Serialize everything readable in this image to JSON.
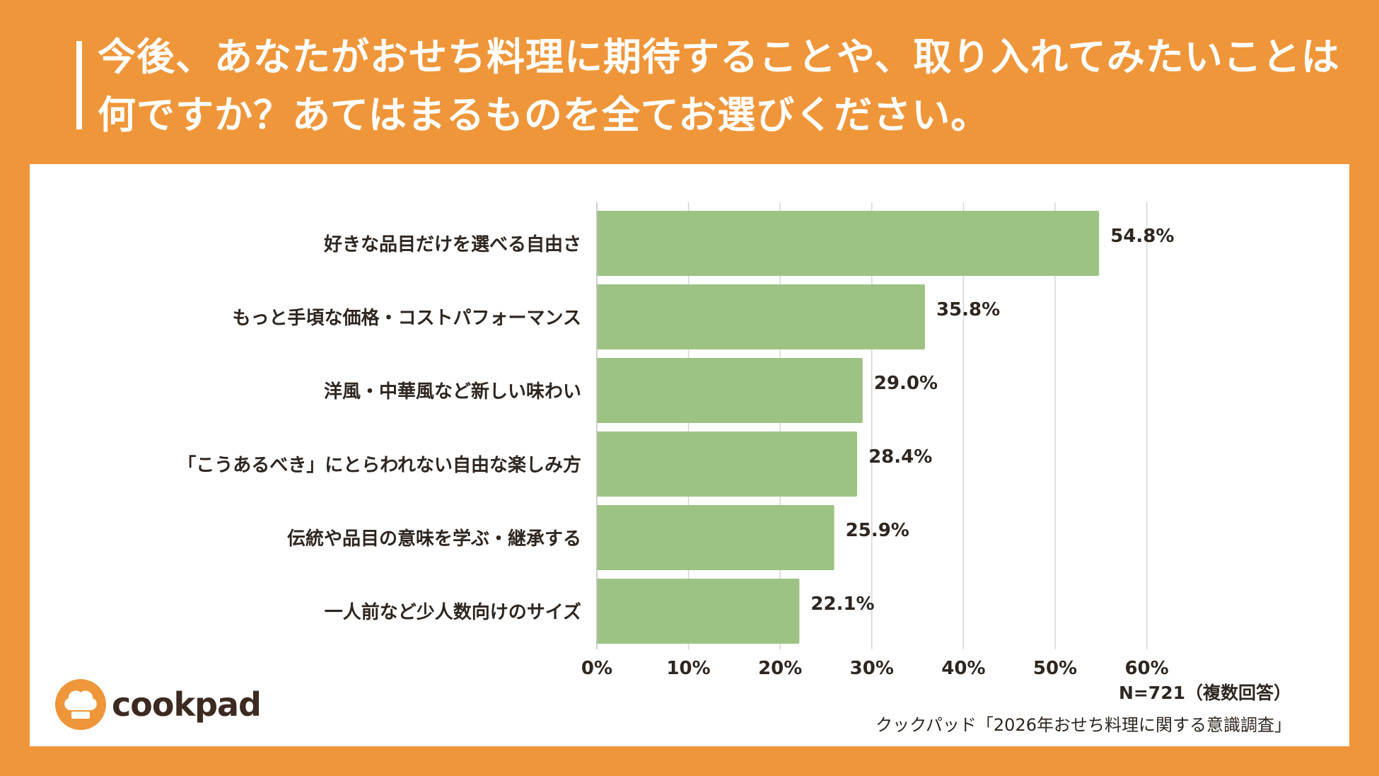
{
  "header": {
    "title": "今後、あなたがおせち料理に期待することや、取り入れてみたいことは何ですか？あてはまるものを全てお選びください。"
  },
  "chart_data": {
    "type": "bar",
    "orientation": "horizontal",
    "categories": [
      "好きな品目だけを選べる自由さ",
      "もっと手頃な価格・コストパフォーマンス",
      "洋風・中華風など新しい味わい",
      "「こうあるべき」にとらわれない自由な楽しみ方",
      "伝統や品目の意味を学ぶ・継承する",
      "一人前など少人数向けのサイズ"
    ],
    "values": [
      54.8,
      35.8,
      29.0,
      28.4,
      25.9,
      22.1
    ],
    "value_labels": [
      "54.8%",
      "35.8%",
      "29.0%",
      "28.4%",
      "25.9%",
      "22.1%"
    ],
    "xlim": [
      0,
      60
    ],
    "xticks": [
      0,
      10,
      20,
      30,
      40,
      50,
      60
    ],
    "xtick_labels": [
      "0%",
      "10%",
      "20%",
      "30%",
      "40%",
      "50%",
      "60%"
    ],
    "grid": true,
    "bar_color": "#9DC384"
  },
  "footer": {
    "sample_note": "N=721（複数回答）",
    "source": "クックパッド「2026年おせち料理に関する意識調査」"
  },
  "brand": {
    "logo_text": "cookpad",
    "logo_icon": "chef-hat-icon",
    "accent_color": "#EF963A"
  }
}
